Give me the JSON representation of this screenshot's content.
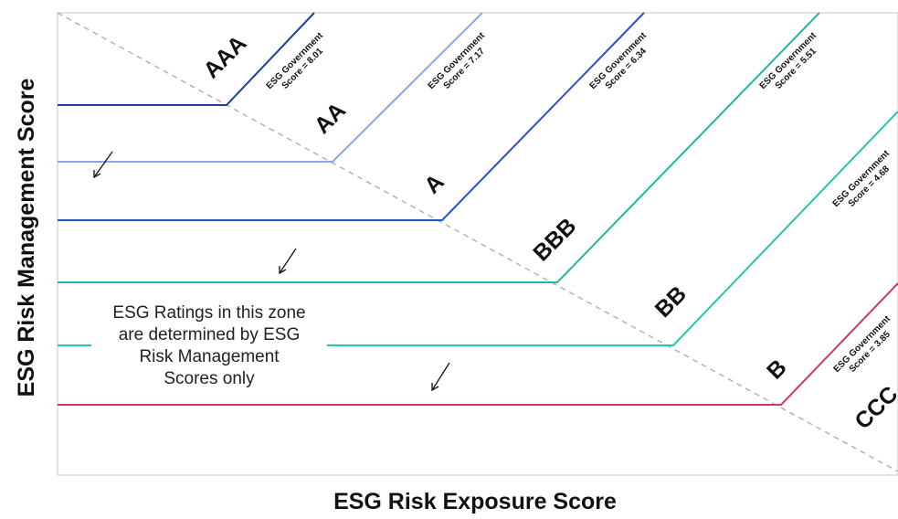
{
  "axes": {
    "x_title": "ESG Risk Exposure Score",
    "y_title": "ESG Risk Management Score"
  },
  "zone_note": {
    "lines": [
      "ESG Ratings in this zone",
      "are determined by ESG",
      "Risk Management",
      "Scores only"
    ]
  },
  "ratings": [
    {
      "id": "aaa",
      "label": "AAA",
      "color": "#1f3f9f",
      "gov_line1": "ESG Government",
      "gov_line2": "Score = 8.01"
    },
    {
      "id": "aa",
      "label": "AA",
      "color": "#8fa2ea",
      "gov_line1": "ESG Government",
      "gov_line2": "Score = 7.17"
    },
    {
      "id": "a",
      "label": "A",
      "color": "#2d4fc6",
      "gov_line1": "ESG Government",
      "gov_line2": "Score = 6.34"
    },
    {
      "id": "bbb",
      "label": "BBB",
      "color": "#20b7a6",
      "gov_line1": "ESG Government",
      "gov_line2": "Score = 5.51"
    },
    {
      "id": "bb",
      "label": "BB",
      "color": "#27c2b2",
      "gov_line1": "ESG Government",
      "gov_line2": "Score = 4.68"
    },
    {
      "id": "b",
      "label": "B",
      "color": "#d2366b",
      "gov_line1": "ESG Government",
      "gov_line2": "Score = 3.85"
    },
    {
      "id": "ccc",
      "label": "CCC",
      "color": "",
      "gov_line1": "",
      "gov_line2": ""
    }
  ],
  "colors": {
    "frame": "#cfcfcf",
    "diagonal": "#b3b3b3",
    "text": "#111111"
  }
}
